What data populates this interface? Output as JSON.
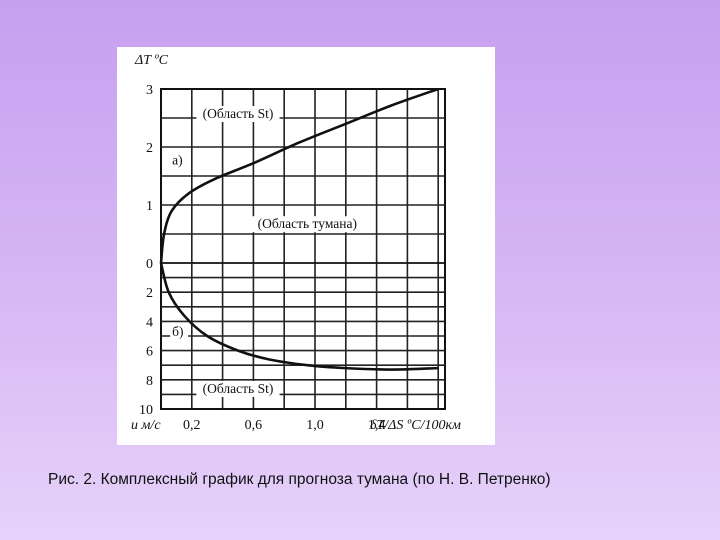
{
  "caption": "Рис. 2. Комплексный график для прогноза тумана (по Н. В. Петренко)",
  "chart_data": {
    "type": "line",
    "y_axis_label": "ΔT ºC",
    "x_axis_label": "δT/ΔS ºC/100км",
    "lower_axis_label": "u м/с",
    "upper_y_ticks": [
      "3",
      "2",
      "1",
      "0"
    ],
    "lower_y_ticks": [
      "2",
      "4",
      "6",
      "8",
      "10"
    ],
    "x_ticks": [
      "0,2",
      "0,6",
      "1,0",
      "1,4"
    ],
    "x_tick_values": [
      0.2,
      0.6,
      1.0,
      1.4
    ],
    "upper_y_tick_values": [
      3,
      2,
      1,
      0
    ],
    "lower_y_tick_values": [
      2,
      4,
      6,
      8,
      10
    ],
    "xlim": [
      0,
      1.9
    ],
    "grid": true,
    "regions": [
      {
        "label": "(Область St)",
        "x": 0.5,
        "y": 2.5
      },
      {
        "label": "(Область тумана)",
        "x": 0.95,
        "y": 0.6
      },
      {
        "label": "(Область St)",
        "x": 0.5,
        "y_lower": 8.9
      }
    ],
    "curve_labels": [
      {
        "label": "а)",
        "x": 0.02,
        "y": 1.7
      },
      {
        "label": "б)",
        "x": 0.02,
        "y_lower": 5.0
      }
    ],
    "upper_curve": {
      "name": "а)",
      "points": [
        {
          "x": 0.0,
          "y": 0.0
        },
        {
          "x": 0.02,
          "y": 0.5
        },
        {
          "x": 0.07,
          "y": 0.9
        },
        {
          "x": 0.18,
          "y": 1.2
        },
        {
          "x": 0.35,
          "y": 1.45
        },
        {
          "x": 0.6,
          "y": 1.72
        },
        {
          "x": 0.9,
          "y": 2.08
        },
        {
          "x": 1.2,
          "y": 2.4
        },
        {
          "x": 1.5,
          "y": 2.72
        },
        {
          "x": 1.8,
          "y": 3.0
        }
      ]
    },
    "lower_curve": {
      "name": "б)",
      "points": [
        {
          "x": 0.0,
          "y": 0.0
        },
        {
          "x": 0.05,
          "y": 2.0
        },
        {
          "x": 0.15,
          "y": 3.6
        },
        {
          "x": 0.3,
          "y": 5.0
        },
        {
          "x": 0.5,
          "y": 6.0
        },
        {
          "x": 0.7,
          "y": 6.6
        },
        {
          "x": 0.95,
          "y": 7.0
        },
        {
          "x": 1.2,
          "y": 7.2
        },
        {
          "x": 1.5,
          "y": 7.3
        },
        {
          "x": 1.8,
          "y": 7.2
        }
      ]
    }
  }
}
